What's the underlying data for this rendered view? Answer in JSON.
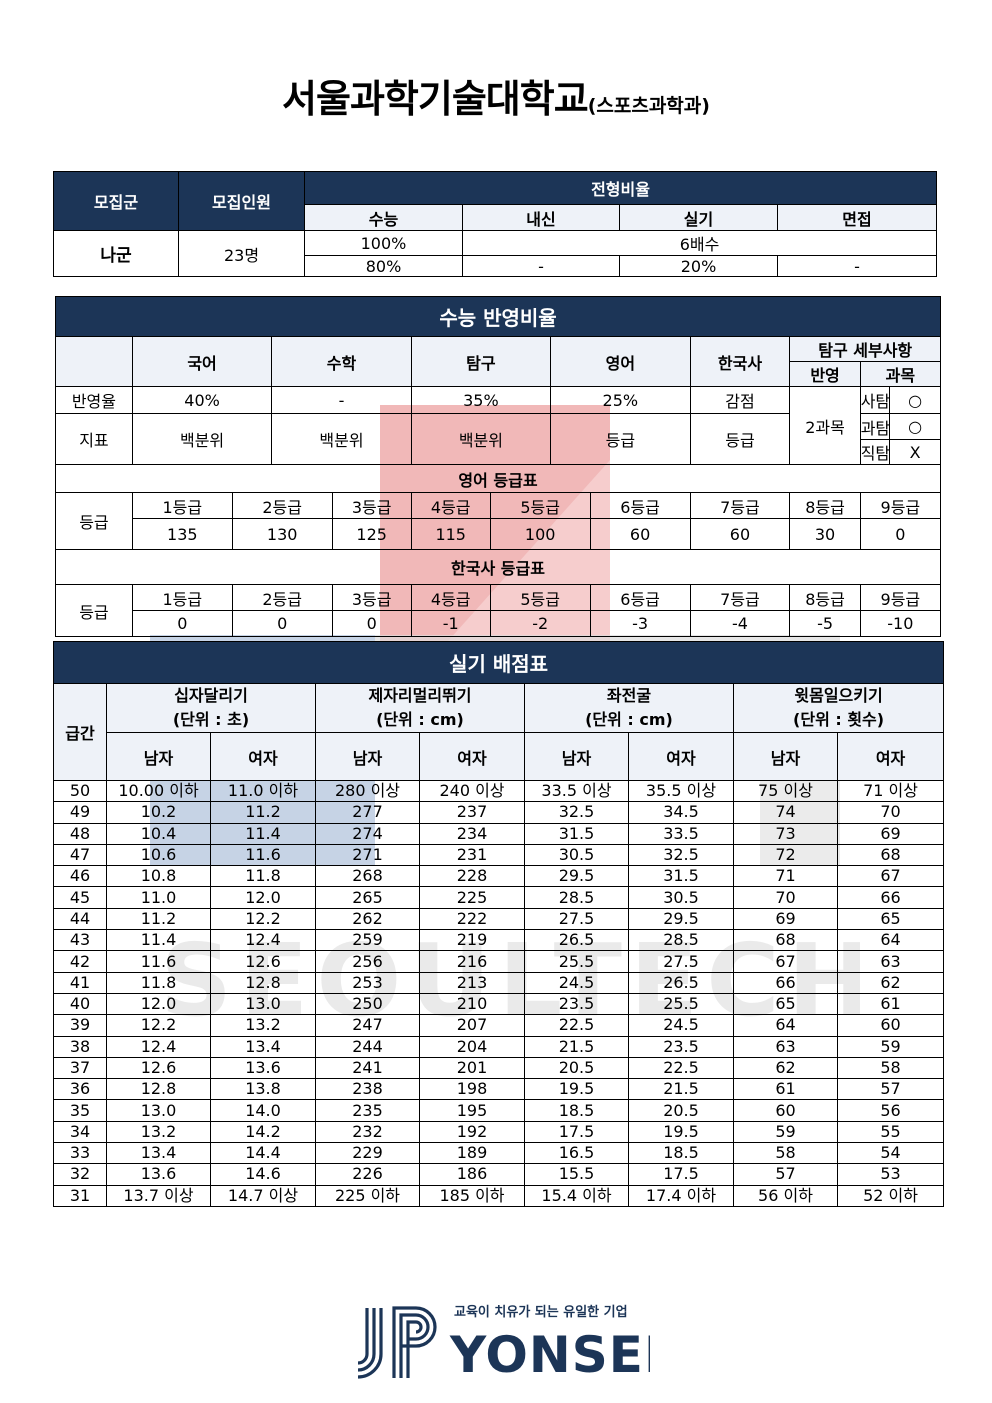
{
  "title": {
    "main": "서울과학기술대학교",
    "sub": "(스포츠과학과)"
  },
  "recruit": {
    "h_group": "모집군",
    "h_count": "모집인원",
    "h_ratio": "전형비율",
    "h_suneung": "수능",
    "h_naesin": "내신",
    "h_silgi": "실기",
    "h_myeonjeop": "면접",
    "group": "나군",
    "count": "23명",
    "row1": {
      "suneung": "100%",
      "mid": "6배수"
    },
    "row2": {
      "suneung": "80%",
      "naesin": "-",
      "silgi": "20%",
      "myeonjeop": "-"
    }
  },
  "suneung": {
    "title": "수능 반영비율",
    "subjects": [
      "국어",
      "수학",
      "탐구",
      "영어",
      "한국사"
    ],
    "tamgu_detail": "탐구 세부사항",
    "h_ban": "반영",
    "h_gwamok": "과목",
    "rate_label": "반영율",
    "rates": [
      "40%",
      "-",
      "35%",
      "25%",
      "감점"
    ],
    "index_label": "지표",
    "indexes": [
      "백분위",
      "백분위",
      "백분위",
      "등급",
      "등급"
    ],
    "ban_count": "2과목",
    "tam": [
      {
        "name": "사탐",
        "mark": "○"
      },
      {
        "name": "과탐",
        "mark": "○"
      },
      {
        "name": "직탐",
        "mark": "X"
      }
    ],
    "eng_title": "영어 등급표",
    "grade_label": "등급",
    "grades": [
      "1등급",
      "2등급",
      "3등급",
      "4등급",
      "5등급",
      "6등급",
      "7등급",
      "8등급",
      "9등급"
    ],
    "eng_scores": [
      "135",
      "130",
      "125",
      "115",
      "100",
      "60",
      "60",
      "30",
      "0"
    ],
    "kor_title": "한국사 등급표",
    "kor_scores": [
      "0",
      "0",
      "0",
      "-1",
      "-2",
      "-3",
      "-4",
      "-5",
      "-10"
    ]
  },
  "practical": {
    "title": "실기 배점표",
    "h_level": "급간",
    "events": [
      {
        "name": "십자달리기",
        "unit": "(단위 : 초)"
      },
      {
        "name": "제자리멀리뛰기",
        "unit": "(단위 : cm)"
      },
      {
        "name": "좌전굴",
        "unit": "(단위 : cm)"
      },
      {
        "name": "윗몸일으키기",
        "unit": "(단위 : 횟수)"
      }
    ],
    "male": "남자",
    "female": "여자",
    "rows": [
      [
        "50",
        "10.00 이하",
        "11.0 이하",
        "280 이상",
        "240 이상",
        "33.5 이상",
        "35.5 이상",
        "75 이상",
        "71 이상"
      ],
      [
        "49",
        "10.2",
        "11.2",
        "277",
        "237",
        "32.5",
        "34.5",
        "74",
        "70"
      ],
      [
        "48",
        "10.4",
        "11.4",
        "274",
        "234",
        "31.5",
        "33.5",
        "73",
        "69"
      ],
      [
        "47",
        "10.6",
        "11.6",
        "271",
        "231",
        "30.5",
        "32.5",
        "72",
        "68"
      ],
      [
        "46",
        "10.8",
        "11.8",
        "268",
        "228",
        "29.5",
        "31.5",
        "71",
        "67"
      ],
      [
        "45",
        "11.0",
        "12.0",
        "265",
        "225",
        "28.5",
        "30.5",
        "70",
        "66"
      ],
      [
        "44",
        "11.2",
        "12.2",
        "262",
        "222",
        "27.5",
        "29.5",
        "69",
        "65"
      ],
      [
        "43",
        "11.4",
        "12.4",
        "259",
        "219",
        "26.5",
        "28.5",
        "68",
        "64"
      ],
      [
        "42",
        "11.6",
        "12.6",
        "256",
        "216",
        "25.5",
        "27.5",
        "67",
        "63"
      ],
      [
        "41",
        "11.8",
        "12.8",
        "253",
        "213",
        "24.5",
        "26.5",
        "66",
        "62"
      ],
      [
        "40",
        "12.0",
        "13.0",
        "250",
        "210",
        "23.5",
        "25.5",
        "65",
        "61"
      ],
      [
        "39",
        "12.2",
        "13.2",
        "247",
        "207",
        "22.5",
        "24.5",
        "64",
        "60"
      ],
      [
        "38",
        "12.4",
        "13.4",
        "244",
        "204",
        "21.5",
        "23.5",
        "63",
        "59"
      ],
      [
        "37",
        "12.6",
        "13.6",
        "241",
        "201",
        "20.5",
        "22.5",
        "62",
        "58"
      ],
      [
        "36",
        "12.8",
        "13.8",
        "238",
        "198",
        "19.5",
        "21.5",
        "61",
        "57"
      ],
      [
        "35",
        "13.0",
        "14.0",
        "235",
        "195",
        "18.5",
        "20.5",
        "60",
        "56"
      ],
      [
        "34",
        "13.2",
        "14.2",
        "232",
        "192",
        "17.5",
        "19.5",
        "59",
        "55"
      ],
      [
        "33",
        "13.4",
        "14.4",
        "229",
        "189",
        "16.5",
        "18.5",
        "58",
        "54"
      ],
      [
        "32",
        "13.6",
        "14.6",
        "226",
        "186",
        "15.5",
        "17.5",
        "57",
        "53"
      ],
      [
        "31",
        "13.7 이상",
        "14.7 이상",
        "225 이하",
        "185 이하",
        "15.4 이하",
        "17.4 이하",
        "56 이하",
        "52 이하"
      ]
    ]
  },
  "footer": {
    "slogan": "교육이 치유가 되는 유일한 기업",
    "brand": "YONSEI",
    "watermark": "SEOULTECH"
  },
  "colors": {
    "header": "#1c3557",
    "subheader": "#eef2f8",
    "logo": "#1c3557"
  }
}
